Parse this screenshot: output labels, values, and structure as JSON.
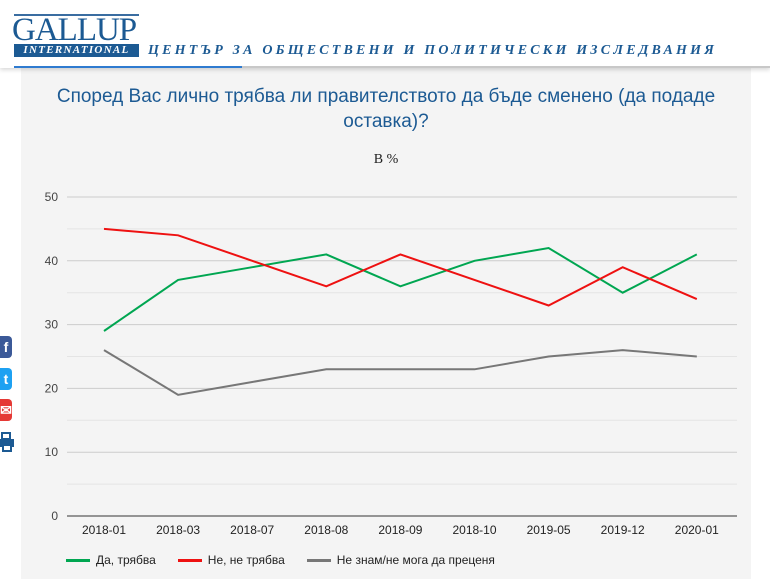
{
  "header": {
    "logo_word": "GALLUP",
    "logo_sub": "INTERNATIONAL",
    "tagline": "ЦЕНТЪР ЗА ОБЩЕСТВЕНИ И ПОЛИТИЧЕСКИ ИЗСЛЕДВАНИЯ"
  },
  "share": [
    {
      "name": "facebook-icon",
      "glyph": "f"
    },
    {
      "name": "twitter-icon",
      "glyph": "t"
    },
    {
      "name": "mail-icon",
      "glyph": "✉"
    },
    {
      "name": "print-icon",
      "glyph": "⎙"
    }
  ],
  "colors": {
    "green": "#00a651",
    "red": "#ee1111",
    "gray": "#777777",
    "brand": "#1c5a93"
  },
  "chart_data": {
    "type": "line",
    "title": "Според Вас лично трябва ли правителството да бъде сменено (да подаде оставка)?",
    "subtitle": "В %",
    "xlabel": "",
    "ylabel": "",
    "categories": [
      "2018-01",
      "2018-03",
      "2018-07",
      "2018-08",
      "2018-09",
      "2018-10",
      "2019-05",
      "2019-12",
      "2020-01"
    ],
    "ylim": [
      0,
      50
    ],
    "yticks": [
      0,
      10,
      20,
      30,
      40,
      50
    ],
    "grid": true,
    "legend_position": "bottom-left",
    "series": [
      {
        "name": "Да, трябва",
        "color": "#00a651",
        "values": [
          29,
          37,
          39,
          41,
          36,
          40,
          42,
          35,
          41
        ]
      },
      {
        "name": "Не, не трябва",
        "color": "#ee1111",
        "values": [
          45,
          44,
          40,
          36,
          41,
          37,
          33,
          39,
          34
        ]
      },
      {
        "name": "Не знам/не мога да преценя",
        "color": "#777777",
        "values": [
          26,
          19,
          21,
          23,
          23,
          23,
          25,
          26,
          25
        ]
      }
    ]
  }
}
